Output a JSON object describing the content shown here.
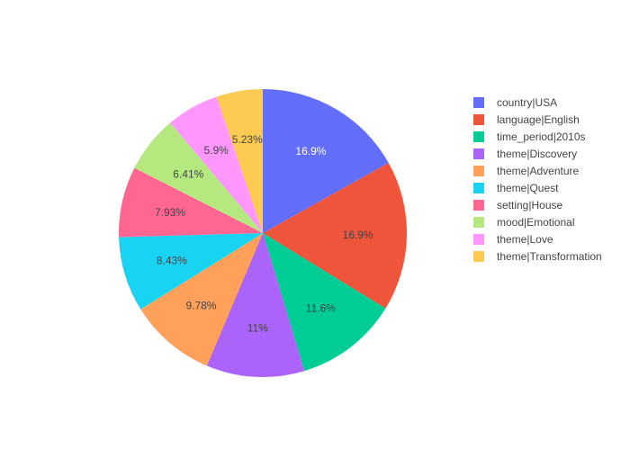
{
  "chart_data": {
    "type": "pie",
    "title": "",
    "labels": [
      "country|USA",
      "language|English",
      "time_period|2010s",
      "theme|Discovery",
      "theme|Adventure",
      "theme|Quest",
      "setting|House",
      "mood|Emotional",
      "theme|Love",
      "theme|Transformation"
    ],
    "values": [
      16.9,
      16.9,
      11.6,
      11,
      9.78,
      8.43,
      7.93,
      6.41,
      5.9,
      5.23
    ],
    "value_labels": [
      "16.9%",
      "16.9%",
      "11.6%",
      "11%",
      "9.78%",
      "8.43%",
      "7.93%",
      "6.41%",
      "5.9%",
      "5.23%"
    ],
    "colors": [
      "#636efa",
      "#ef553b",
      "#00cc96",
      "#ab63fa",
      "#ffa15a",
      "#19d3f3",
      "#ff6692",
      "#b6e880",
      "#ff97ff",
      "#fecb52"
    ],
    "text_colors": [
      "#ffffff",
      "#444444",
      "#444444",
      "#444444",
      "#444444",
      "#444444",
      "#444444",
      "#444444",
      "#444444",
      "#444444"
    ],
    "direction": "clockwise",
    "start": "top",
    "legend_position": "right"
  }
}
